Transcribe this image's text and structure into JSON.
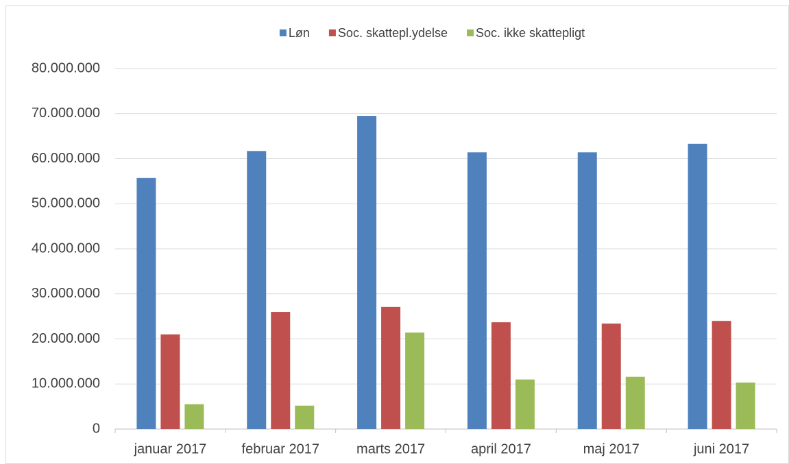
{
  "chart_data": {
    "type": "bar",
    "categories": [
      "januar 2017",
      "februar 2017",
      "marts 2017",
      "april 2017",
      "maj 2017",
      "juni 2017"
    ],
    "series": [
      {
        "name": "Løn",
        "color": "#4f81bd",
        "values": [
          55700000,
          61700000,
          69500000,
          61400000,
          61400000,
          63300000
        ]
      },
      {
        "name": "Soc. skattepl.ydelse",
        "color": "#c0504d",
        "values": [
          21000000,
          26000000,
          27100000,
          23700000,
          23400000,
          24000000
        ]
      },
      {
        "name": "Soc. ikke skattepligt",
        "color": "#9bbb59",
        "values": [
          5500000,
          5200000,
          21400000,
          11000000,
          11600000,
          10300000
        ]
      }
    ],
    "ylim": [
      0,
      80000000
    ],
    "yticks": [
      0,
      {
        "value": 10000000,
        "label": "10.000.000"
      },
      {
        "value": 20000000,
        "label": "20.000.000"
      },
      {
        "value": 30000000,
        "label": "30.000.000"
      },
      {
        "value": 40000000,
        "label": "40.000.000"
      },
      {
        "value": 50000000,
        "label": "50.000.000"
      },
      {
        "value": 60000000,
        "label": "60.000.000"
      },
      {
        "value": 70000000,
        "label": "70.000.000"
      },
      {
        "value": 80000000,
        "label": "80.000.000"
      }
    ],
    "grid": true,
    "legend": "top"
  }
}
